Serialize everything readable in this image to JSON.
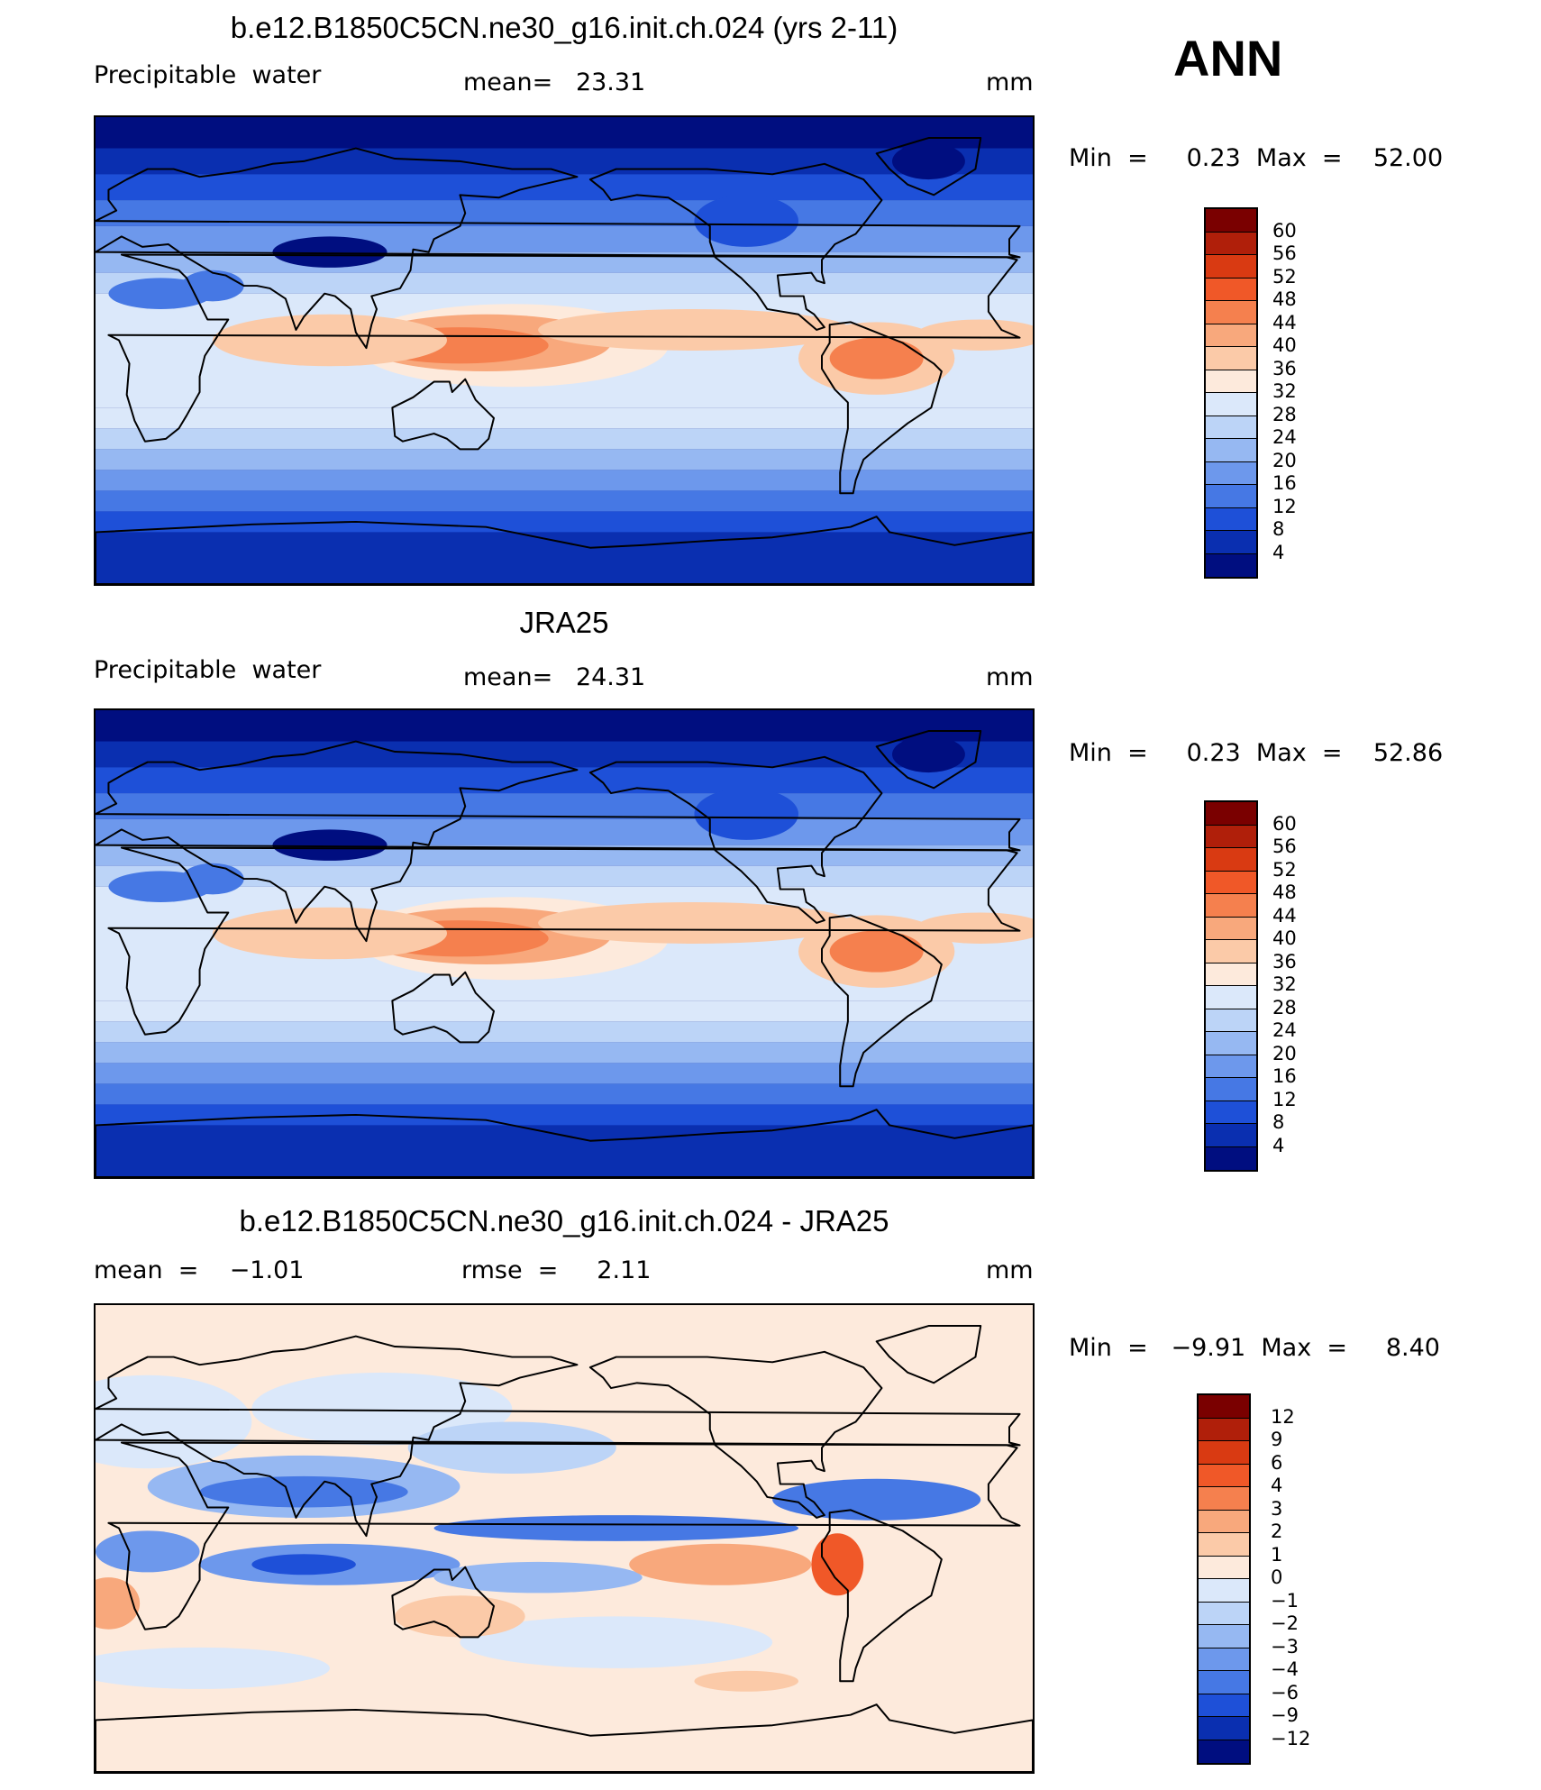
{
  "season": "ANN",
  "panels": [
    {
      "title": "b.e12.B1850C5CN.ne30_g16.init.ch.024 (yrs 2-11)",
      "left_label": "Precipitable  water",
      "center_label": "mean=   23.31",
      "units": "mm",
      "minmax": "Min  =     0.23  Max  =    52.00",
      "levels": [
        "60",
        "56",
        "52",
        "48",
        "44",
        "40",
        "36",
        "32",
        "28",
        "24",
        "20",
        "16",
        "12",
        "8",
        "4"
      ]
    },
    {
      "title": "JRA25",
      "left_label": "Precipitable  water",
      "center_label": "mean=   24.31",
      "units": "mm",
      "minmax": "Min  =     0.23  Max  =    52.86",
      "levels": [
        "60",
        "56",
        "52",
        "48",
        "44",
        "40",
        "36",
        "32",
        "28",
        "24",
        "20",
        "16",
        "12",
        "8",
        "4"
      ]
    },
    {
      "title": "b.e12.B1850C5CN.ne30_g16.init.ch.024 - JRA25",
      "left_label": "mean  =    −1.01",
      "center_label": "rmse  =     2.11",
      "units": "mm",
      "minmax": "Min  =   −9.91  Max  =     8.40",
      "levels": [
        "12",
        "9",
        "6",
        "4",
        "3",
        "2",
        "1",
        "0",
        "−1",
        "−2",
        "−3",
        "−4",
        "−6",
        "−9",
        "−12"
      ]
    }
  ],
  "colors": {
    "abs_scale": [
      "#7a0000",
      "#b01f0a",
      "#d93a12",
      "#f05828",
      "#f5804e",
      "#f8a87c",
      "#fbcaa8",
      "#fdeadc",
      "#dbe8fa",
      "#bcd4f7",
      "#96b8f2",
      "#6d98ec",
      "#4678e4",
      "#1e50d8",
      "#0a2fb0",
      "#000e80"
    ],
    "diff_scale": [
      "#7a0000",
      "#b01f0a",
      "#d93a12",
      "#f05828",
      "#f5804e",
      "#f8a87c",
      "#fbcaa8",
      "#fdeadc",
      "#dbe8fa",
      "#bcd4f7",
      "#96b8f2",
      "#6d98ec",
      "#4678e4",
      "#1e50d8",
      "#0a2fb0",
      "#000e80"
    ]
  }
}
